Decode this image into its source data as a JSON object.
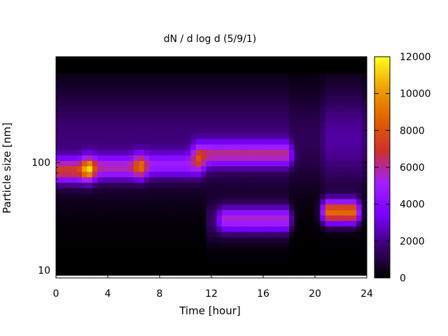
{
  "chart_data": {
    "type": "heatmap",
    "title": "dN / d log d (5/9/1)",
    "xlabel": "Time [hour]",
    "ylabel": "Particle size [nm]",
    "xlim": [
      0,
      24
    ],
    "ylim": [
      8.5,
      960
    ],
    "y_scale": "log",
    "x_ticks": [
      0,
      4,
      8,
      12,
      16,
      20,
      24
    ],
    "x_tick_labels": [
      "0",
      "4",
      "8",
      "12",
      "16",
      "20",
      "24"
    ],
    "y_ticks": [
      10,
      100
    ],
    "y_tick_labels": [
      "10",
      "100"
    ],
    "colorbar": {
      "range": [
        0,
        12000
      ],
      "ticks": [
        0,
        2000,
        4000,
        6000,
        8000,
        10000,
        12000
      ],
      "tick_labels": [
        "0",
        "2000",
        "4000",
        "6000",
        "8000",
        "10000",
        "12000"
      ],
      "colormap": [
        "#000000",
        "#3b0070",
        "#7a00ff",
        "#a020ff",
        "#cc3030",
        "#e06000",
        "#f0a000",
        "#ffff20"
      ]
    },
    "grid": false,
    "modes": [
      {
        "t_start": 0,
        "t_end": 2.5,
        "size_nm": 85,
        "value": 7500
      },
      {
        "t_start": 2.5,
        "t_end": 6.5,
        "size_nm": 90,
        "value": 6000
      },
      {
        "t_start": 6.5,
        "t_end": 11,
        "size_nm": 95,
        "value": 5000
      },
      {
        "t_start": 11,
        "t_end": 17.8,
        "size_nm": 120,
        "value": 6000
      },
      {
        "t_start": 13,
        "t_end": 17.8,
        "size_nm": 30,
        "value": 5500
      },
      {
        "t_start": 21,
        "t_end": 23,
        "size_nm": 35,
        "value": 10000
      }
    ]
  }
}
